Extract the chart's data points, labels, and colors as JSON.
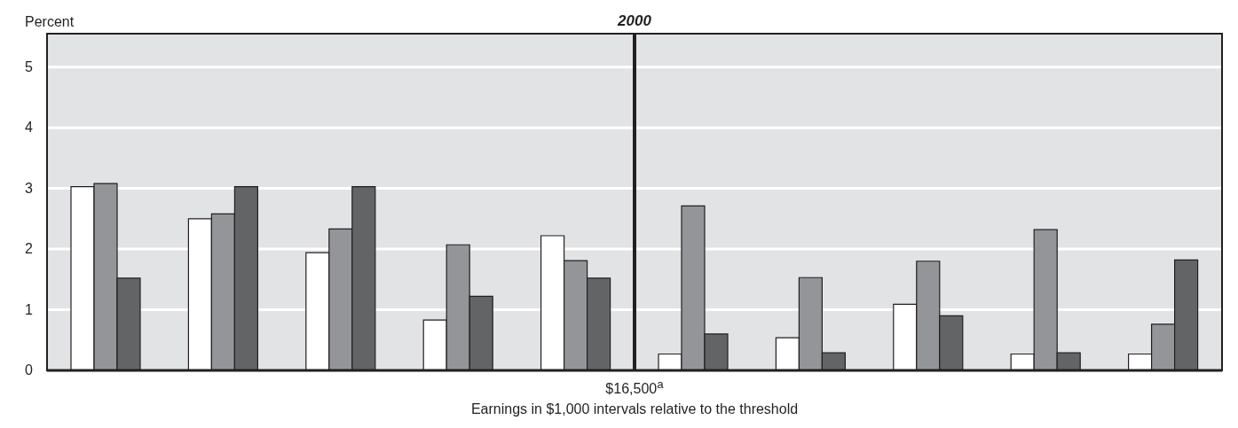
{
  "chart_data": {
    "type": "bar",
    "title": "2000",
    "xlabel": "Earnings in $1,000 intervals relative to the threshold",
    "ylabel": "Percent",
    "categories": [
      null,
      null,
      null,
      null,
      null,
      null,
      null,
      null,
      null,
      null
    ],
    "series": [
      {
        "color": "#ffffff",
        "values": [
          3.03,
          2.5,
          1.94,
          0.83,
          2.22,
          0.27,
          0.54,
          1.09,
          0.27,
          0.27
        ]
      },
      {
        "color": "#939598",
        "values": [
          3.08,
          2.58,
          2.33,
          2.07,
          1.81,
          2.71,
          1.53,
          1.8,
          2.32,
          0.76
        ]
      },
      {
        "color": "#636466",
        "values": [
          1.52,
          3.03,
          3.03,
          1.22,
          1.52,
          0.6,
          0.29,
          0.9,
          0.29,
          1.82
        ]
      }
    ],
    "annotations": [
      "$16,500$^{a}$"
    ],
    "ylim": [
      0,
      5.55
    ],
    "yticks": [
      0,
      1,
      2,
      3,
      4,
      5
    ],
    "grid": "y",
    "legend": false
  }
}
